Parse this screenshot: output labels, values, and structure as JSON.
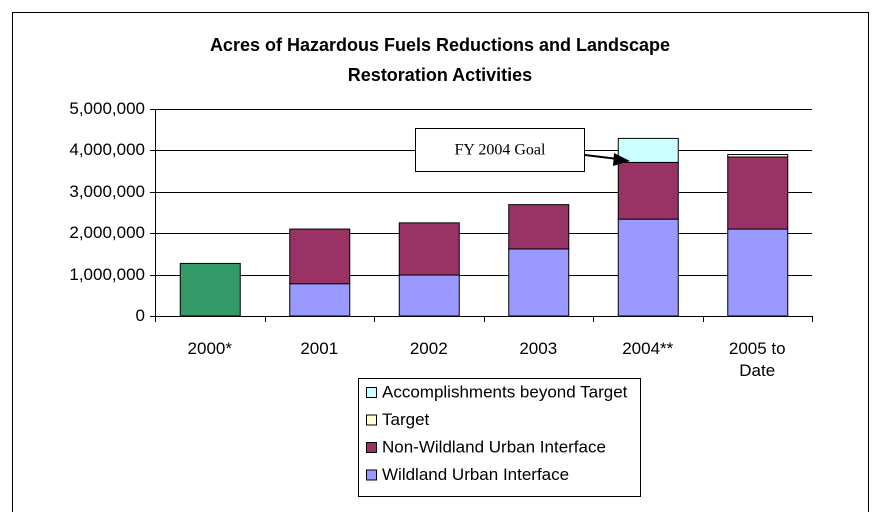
{
  "chart_data": {
    "type": "stacked_bar",
    "title": "Acres of Hazardous Fuels Reductions and Landscape Restoration Activities",
    "categories": [
      "2000*",
      "2001",
      "2002",
      "2003",
      "2004**",
      "2005 to Date"
    ],
    "series": [
      {
        "color": "#339966",
        "values": [
          1270000,
          null,
          null,
          null,
          null,
          null
        ]
      },
      {
        "name": "Wildland Urban Interface",
        "color": "#9999ff",
        "values": [
          null,
          780000,
          990000,
          1620000,
          2340000,
          2100000
        ]
      },
      {
        "name": "Non-Wildland Urban Interface",
        "color": "#993366",
        "values": [
          null,
          1320000,
          1260000,
          1070000,
          1370000,
          1740000
        ]
      },
      {
        "name": "Target",
        "color": "#ffffcc",
        "values": [
          null,
          null,
          null,
          null,
          null,
          60000
        ]
      },
      {
        "name": "Accomplishments beyond Target",
        "color": "#ccffff",
        "values": [
          null,
          null,
          null,
          null,
          580000,
          null
        ]
      }
    ],
    "ylim": [
      0,
      5000000
    ],
    "yticks": [
      0,
      {
        "value": 1000000,
        "label": "1,000,000"
      },
      {
        "value": 2000000,
        "label": "2,000,000"
      },
      {
        "value": 3000000,
        "label": "3,000,000"
      },
      {
        "value": 4000000,
        "label": "4,000,000"
      },
      {
        "value": 5000000,
        "label": "5,000,000"
      }
    ],
    "grid": true,
    "annotations": [
      {
        "text": "FY 2004 Goal"
      }
    ]
  }
}
